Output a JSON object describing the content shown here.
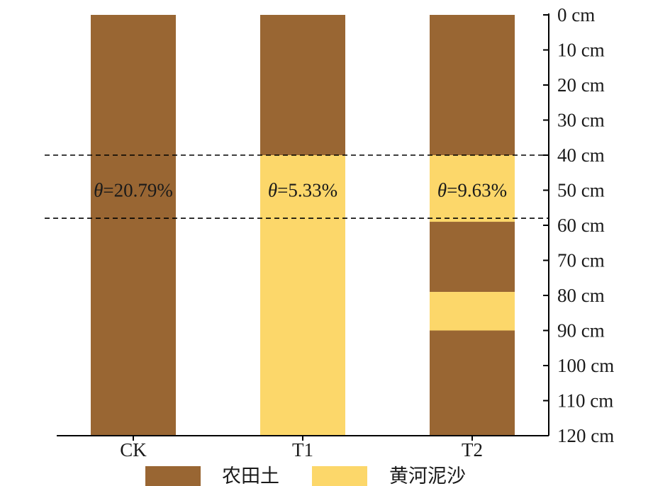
{
  "colors": {
    "farmland_soil": "#996633",
    "yellow_river_sediment": "#FCD76A",
    "axis": "#000000",
    "dashed_line": "#000000"
  },
  "chart_data": {
    "type": "bar",
    "orientation": "vertical-stacked-layers",
    "categories": [
      "CK",
      "T1",
      "T2"
    ],
    "y_axis": {
      "position": "right",
      "direction": "downward",
      "unit": "cm",
      "ylim": [
        0,
        120
      ],
      "ticks": [
        0,
        10,
        20,
        30,
        40,
        50,
        60,
        70,
        80,
        90,
        100,
        110,
        120
      ],
      "tick_labels": [
        "0 cm",
        "10 cm",
        "20 cm",
        "30 cm",
        "40 cm",
        "50 cm",
        "60 cm",
        "70 cm",
        "80 cm",
        "90 cm",
        "100 cm",
        "110 cm",
        "120 cm"
      ]
    },
    "series": [
      {
        "name": "农田土",
        "color_key": "farmland_soil"
      },
      {
        "name": "黄河泥沙",
        "color_key": "yellow_river_sediment"
      }
    ],
    "layers": [
      {
        "category": "CK",
        "segments": [
          {
            "series": "农田土",
            "from": 0,
            "to": 120
          }
        ]
      },
      {
        "category": "T1",
        "segments": [
          {
            "series": "农田土",
            "from": 0,
            "to": 40
          },
          {
            "series": "黄河泥沙",
            "from": 40,
            "to": 120
          }
        ]
      },
      {
        "category": "T2",
        "segments": [
          {
            "series": "农田土",
            "from": 0,
            "to": 40
          },
          {
            "series": "黄河泥沙",
            "from": 40,
            "to": 59
          },
          {
            "series": "农田土",
            "from": 59,
            "to": 79
          },
          {
            "series": "黄河泥沙",
            "from": 79,
            "to": 90
          },
          {
            "series": "农田土",
            "from": 90,
            "to": 120
          }
        ]
      }
    ],
    "reference_lines": [
      40,
      58
    ],
    "annotations": [
      {
        "category": "CK",
        "symbol": "θ",
        "text": "=20.79%",
        "depth": 50
      },
      {
        "category": "T1",
        "symbol": "θ",
        "text": "=5.33%",
        "depth": 50
      },
      {
        "category": "T2",
        "symbol": "θ",
        "text": "=9.63%",
        "depth": 50
      }
    ],
    "legend": {
      "placement": "bottom",
      "entries": [
        "农田土",
        "黄河泥沙"
      ]
    },
    "grid": false
  }
}
